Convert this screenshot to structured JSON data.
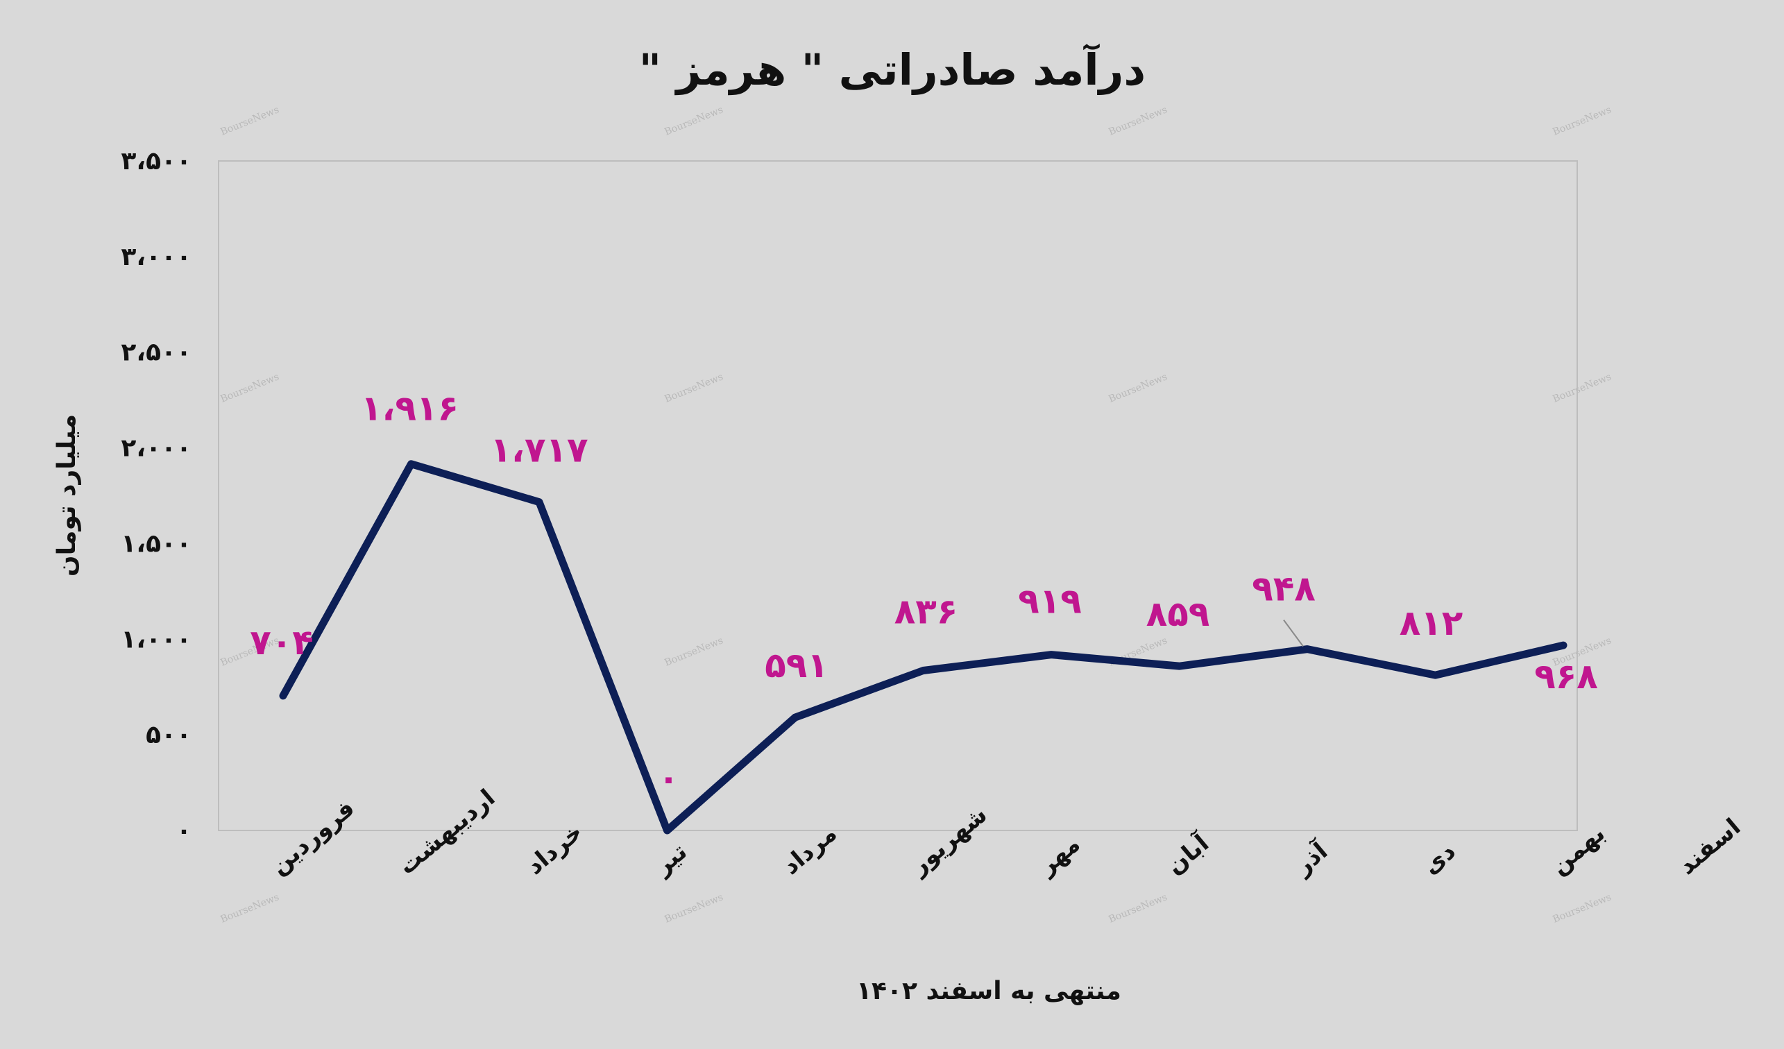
{
  "chart_data": {
    "type": "line",
    "title": "درآمد صادراتی \" هرمز \"",
    "xlabel": "منتهی به اسفند ۱۴۰۲",
    "ylabel": "میلیارد تومان",
    "ylim": [
      0,
      3500
    ],
    "yticks": [
      0,
      500,
      1000,
      1500,
      2000,
      2500,
      3000,
      3500
    ],
    "ytick_labels": [
      "۰",
      "۵۰۰",
      "۱،۰۰۰",
      "۱،۵۰۰",
      "۲،۰۰۰",
      "۲،۵۰۰",
      "۳،۰۰۰",
      "۳،۵۰۰"
    ],
    "categories": [
      "فروردین",
      "اردیبهشت",
      "خرداد",
      "تیر",
      "مرداد",
      "شهریور",
      "مهر",
      "آبان",
      "آذر",
      "دی",
      "بهمن",
      "اسفند"
    ],
    "values": [
      704,
      1916,
      1717,
      0,
      591,
      836,
      919,
      859,
      948,
      812,
      968,
      null
    ],
    "data_labels": [
      "۷۰۴",
      "۱،۹۱۶",
      "۱،۷۱۷",
      "۰",
      "۵۹۱",
      "۸۳۶",
      "۹۱۹",
      "۸۵۹",
      "۹۴۸",
      "۸۱۲",
      "۹۶۸",
      ""
    ],
    "line_color": "#0d1f56",
    "label_color": "#c0168f",
    "background": "#d9d9d9",
    "grid": false,
    "watermark": "BourseNews"
  }
}
